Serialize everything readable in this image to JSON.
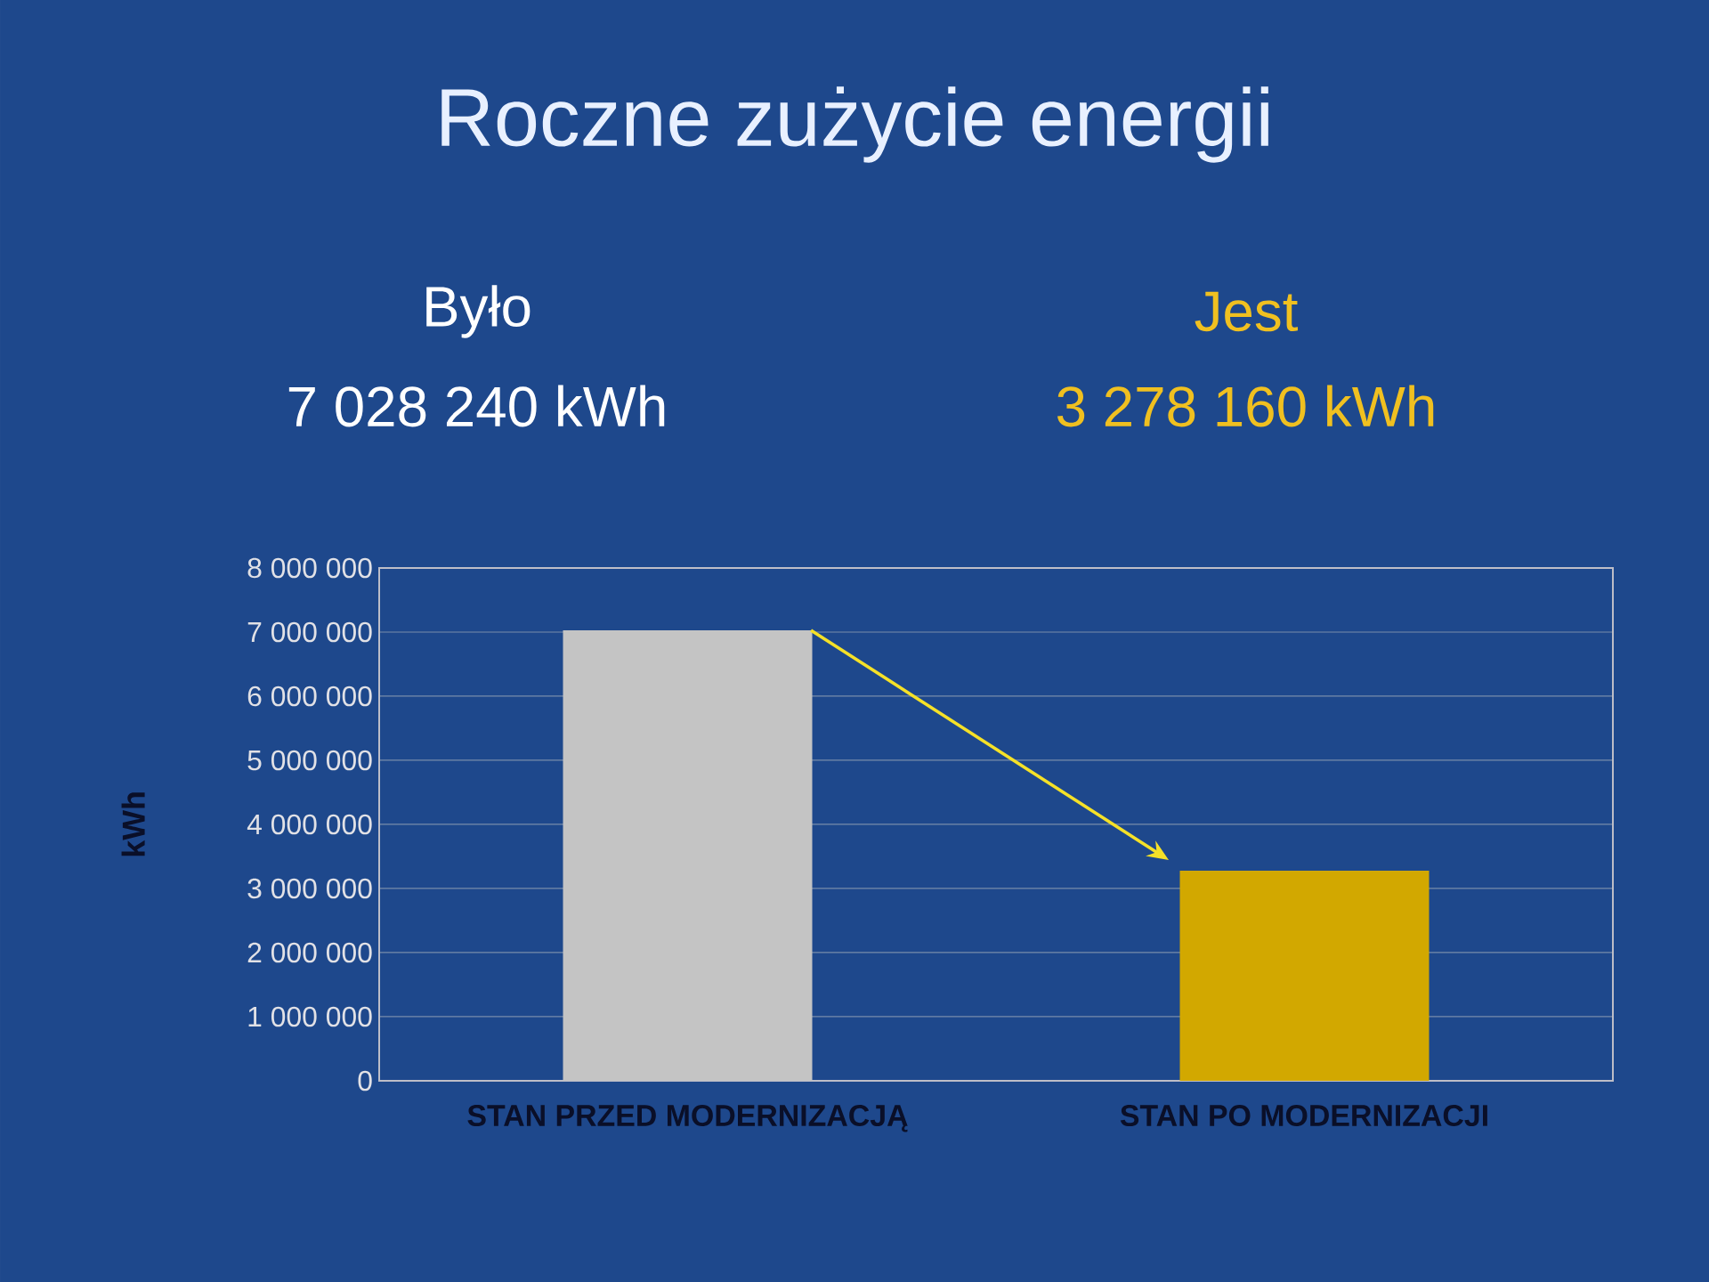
{
  "chart_data": {
    "type": "bar",
    "title": "Roczne zużycie energii",
    "ylabel": "kWh",
    "categories": [
      "STAN PRZED MODERNIZACJĄ",
      "STAN PO MODERNIZACJI"
    ],
    "values": [
      7028240,
      3278160
    ],
    "colors": [
      "#c4c4c4",
      "#d2a800"
    ],
    "ylim": [
      0,
      8000000
    ],
    "yticks": [
      0,
      {
        "value": 1000000,
        "label": "1 000 000"
      },
      {
        "value": 2000000,
        "label": "2 000 000"
      },
      {
        "value": 3000000,
        "label": "3 000 000"
      },
      {
        "value": 4000000,
        "label": "4 000 000"
      },
      {
        "value": 5000000,
        "label": "5 000 000"
      },
      {
        "value": 6000000,
        "label": "6 000 000"
      },
      {
        "value": 7000000,
        "label": "7 000 000"
      },
      {
        "value": 8000000,
        "label": "8 000 000"
      }
    ],
    "grid": "y",
    "annotations": [
      "Było",
      "7 028 240 kWh",
      "Jest",
      "3 278 160 kWh"
    ]
  }
}
